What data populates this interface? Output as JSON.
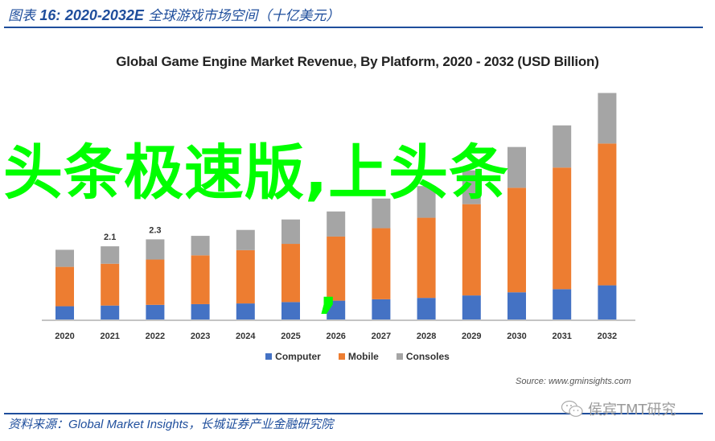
{
  "figure": {
    "label": "图表",
    "number": "16:",
    "range": "2020-2032E",
    "title_cn": "全球游戏市场空间（十亿美元）"
  },
  "chart_data": {
    "type": "bar",
    "stacked": true,
    "title": "Global Game Engine Market Revenue, By Platform, 2020 - 2032 (USD Billion)",
    "xlabel": "",
    "ylabel": "",
    "categories": [
      "2020",
      "2021",
      "2022",
      "2023",
      "2024",
      "2025",
      "2026",
      "2027",
      "2028",
      "2029",
      "2030",
      "2031",
      "2032"
    ],
    "series": [
      {
        "name": "Computer",
        "color": "#4472c4",
        "values": [
          0.38,
          0.4,
          0.42,
          0.44,
          0.46,
          0.5,
          0.54,
          0.58,
          0.62,
          0.69,
          0.78,
          0.87,
          0.98
        ]
      },
      {
        "name": "Mobile",
        "color": "#ed7d31",
        "values": [
          1.13,
          1.2,
          1.3,
          1.4,
          1.53,
          1.67,
          1.84,
          2.04,
          2.3,
          2.62,
          3.0,
          3.49,
          4.07
        ]
      },
      {
        "name": "Consoles",
        "color": "#a5a5a5",
        "values": [
          0.49,
          0.5,
          0.58,
          0.56,
          0.58,
          0.7,
          0.72,
          0.85,
          0.91,
          0.97,
          1.17,
          1.21,
          1.45
        ]
      }
    ],
    "data_labels": [
      {
        "category": "2021",
        "text": "2.1"
      },
      {
        "category": "2022",
        "text": "2.3"
      }
    ],
    "ylim": [
      0,
      6.6
    ],
    "grid": false,
    "legend_position": "bottom-center"
  },
  "source_note": "Source: www.gminsights.com",
  "footer": {
    "label": "资料来源：",
    "source_en": "Global Market Insights",
    "source_cn": "，长城证券产业金融研究院"
  },
  "watermark": {
    "wechat_account": "侯宾TMT研究",
    "overlay_text": "头条极速版,上头条",
    "overlay_comma": ",",
    "overlay_color": "#00ff00"
  }
}
